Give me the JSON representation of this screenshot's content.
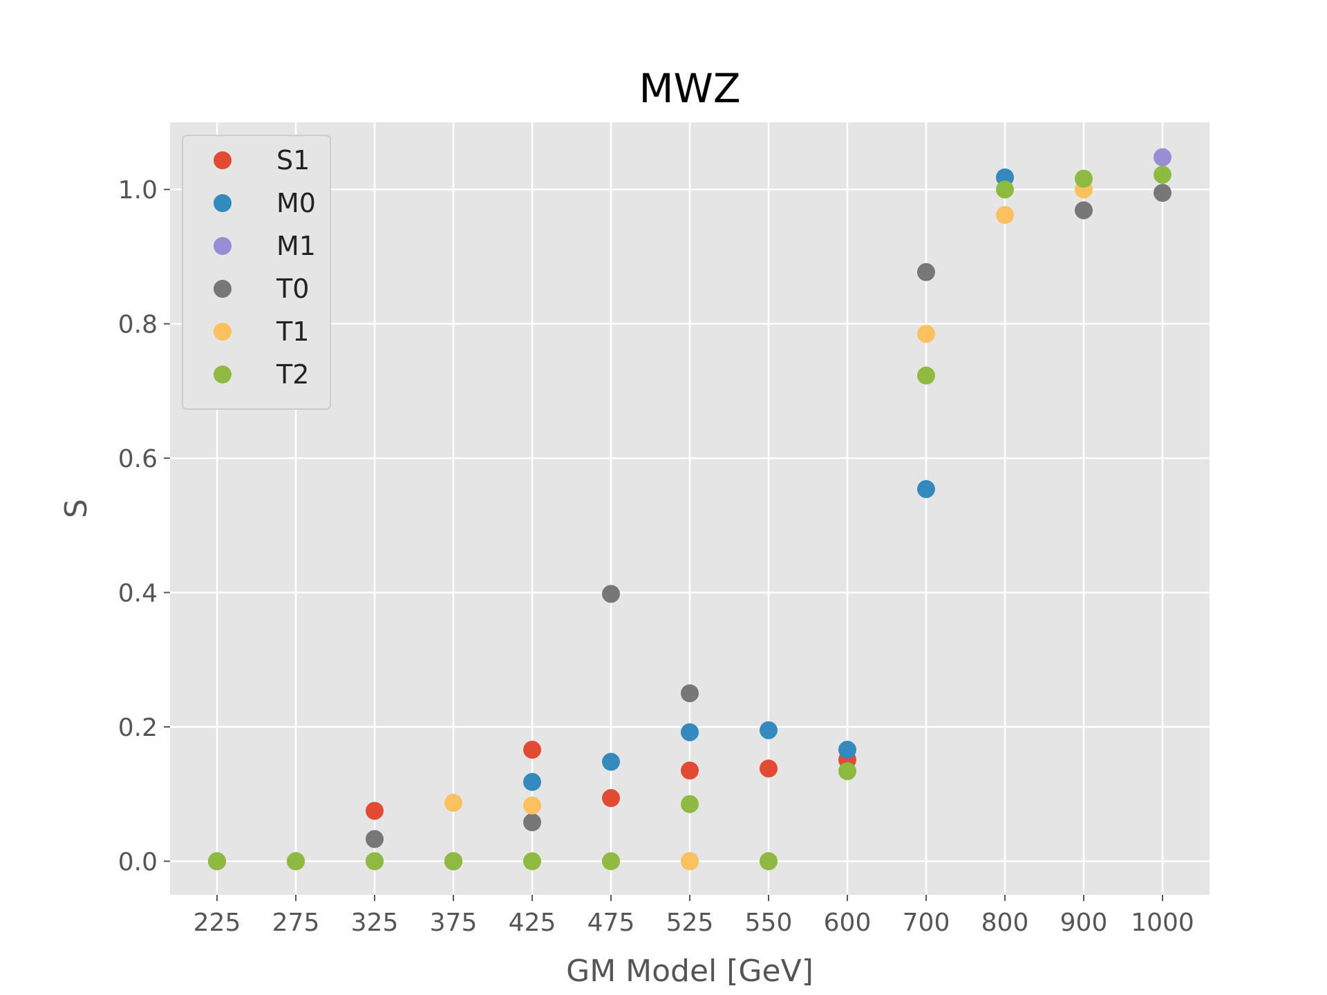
{
  "chart_data": {
    "type": "scatter",
    "title": "MWZ",
    "xlabel": "GM Model [GeV]",
    "ylabel": "S",
    "categories": [
      "225",
      "275",
      "325",
      "375",
      "425",
      "475",
      "525",
      "550",
      "600",
      "700",
      "800",
      "900",
      "1000"
    ],
    "ylim": [
      -0.05,
      1.1
    ],
    "yticks": [
      "0.0",
      "0.2",
      "0.4",
      "0.6",
      "0.8",
      "1.0"
    ],
    "grid": true,
    "legend_position": "top-left",
    "series": [
      {
        "name": "S1",
        "color": "#E24A33",
        "values": [
          0.0,
          0.0,
          0.075,
          0.0,
          0.166,
          0.094,
          0.135,
          0.138,
          0.151,
          null,
          null,
          null,
          null
        ]
      },
      {
        "name": "M0",
        "color": "#348ABD",
        "values": [
          0.0,
          0.0,
          0.0,
          0.0,
          0.118,
          0.148,
          0.192,
          0.195,
          0.166,
          0.554,
          1.018,
          null,
          null
        ]
      },
      {
        "name": "M1",
        "color": "#988ED5",
        "values": [
          null,
          null,
          null,
          null,
          null,
          null,
          0.0,
          null,
          null,
          null,
          null,
          null,
          1.048
        ]
      },
      {
        "name": "T0",
        "color": "#777777",
        "values": [
          0.0,
          0.0,
          0.033,
          0.0,
          0.058,
          0.398,
          0.25,
          0.0,
          null,
          0.877,
          null,
          0.969,
          0.995
        ]
      },
      {
        "name": "T1",
        "color": "#FBC15E",
        "values": [
          0.0,
          0.0,
          0.0,
          0.087,
          0.083,
          0.0,
          0.0,
          0.0,
          null,
          0.785,
          0.962,
          1.0,
          null
        ]
      },
      {
        "name": "T2",
        "color": "#8EBA42",
        "values": [
          0.0,
          0.0,
          0.0,
          0.0,
          0.0,
          0.0,
          0.085,
          0.0,
          0.134,
          0.723,
          1.0,
          1.016,
          1.022
        ]
      }
    ]
  }
}
